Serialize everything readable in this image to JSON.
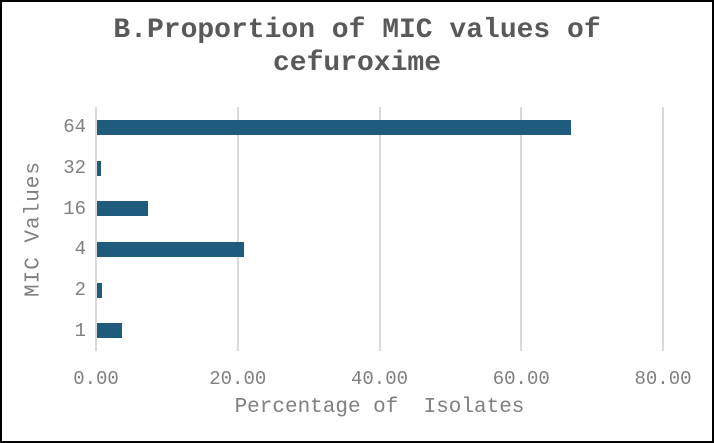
{
  "window": {
    "background_color": "#ffffff",
    "border_color": "#000000"
  },
  "chart_data": {
    "type": "bar",
    "orientation": "horizontal",
    "title": "B.Proportion of MIC values of cefuroxime",
    "title_lines": [
      "B.Proportion of MIC values of",
      "cefuroxime"
    ],
    "categories": [
      "64",
      "32",
      "16",
      "4",
      "2",
      "1"
    ],
    "values": [
      66.9,
      0.6,
      7.2,
      20.7,
      0.7,
      3.5
    ],
    "xlabel": "Percentage of  Isolates",
    "ylabel": "MIC Values",
    "xlim": [
      0,
      80
    ],
    "xtick_values": [
      0,
      20,
      40,
      60,
      80
    ],
    "xtick_labels": [
      "0.00",
      "20.00",
      "40.00",
      "60.00",
      "80.00"
    ],
    "grid": "vertical-gridlines-on",
    "legend": "none",
    "bar_color": "#1e5b7c",
    "gridline_color": "#d9d9d9",
    "title_color": "#595959",
    "axis_text_color": "#808080",
    "axis_title_color": "#7f7f7f"
  }
}
